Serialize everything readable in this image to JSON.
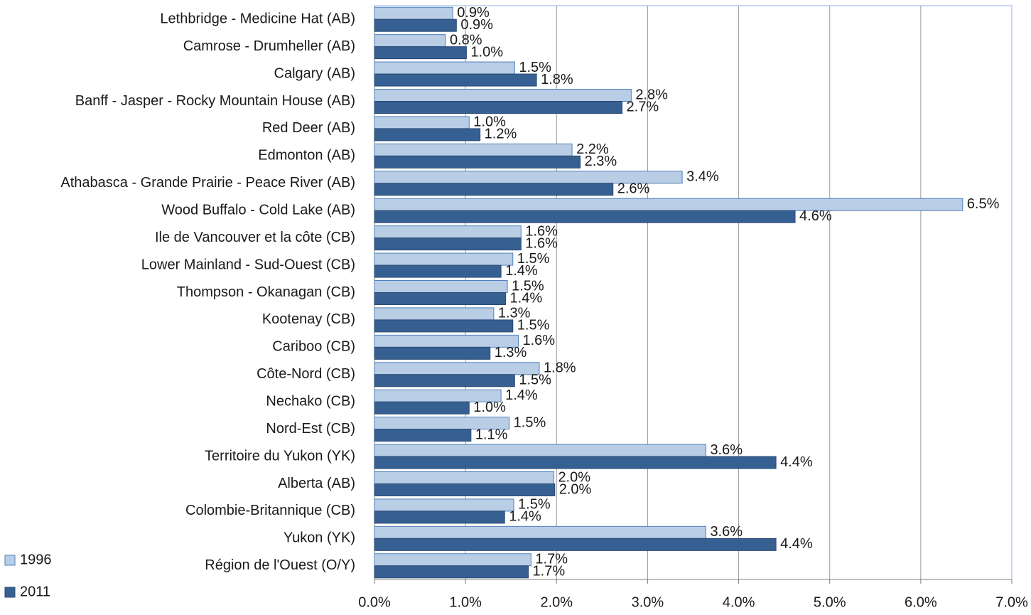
{
  "chart_data": {
    "type": "bar",
    "orientation": "horizontal",
    "categories": [
      "Lethbridge - Medicine Hat (AB)",
      "Camrose - Drumheller (AB)",
      "Calgary (AB)",
      "Banff - Jasper - Rocky Mountain House (AB)",
      "Red Deer (AB)",
      "Edmonton (AB)",
      "Athabasca - Grande Prairie - Peace River (AB)",
      "Wood Buffalo - Cold Lake (AB)",
      "Ile de Vancouver et la côte (CB)",
      "Lower Mainland - Sud-Ouest (CB)",
      "Thompson - Okanagan (CB)",
      "Kootenay (CB)",
      "Cariboo (CB)",
      "Côte-Nord (CB)",
      "Nechako (CB)",
      "Nord-Est (CB)",
      "Territoire du Yukon (YK)",
      "Alberta (AB)",
      "Colombie-Britannique (CB)",
      "Yukon (YK)",
      "Région de l'Ouest (O/Y)"
    ],
    "series": [
      {
        "name": "1996",
        "color": "#b9cde5",
        "edge": "#4f81bd",
        "values": [
          0.86,
          0.78,
          1.54,
          2.82,
          1.04,
          2.17,
          3.38,
          6.46,
          1.61,
          1.52,
          1.46,
          1.31,
          1.58,
          1.81,
          1.39,
          1.48,
          3.64,
          1.97,
          1.53,
          3.64,
          1.72
        ],
        "value_labels": [
          "0.9%",
          "0.8%",
          "1.5%",
          "2.8%",
          "1.0%",
          "2.2%",
          "3.4%",
          "6.5%",
          "1.6%",
          "1.5%",
          "1.5%",
          "1.3%",
          "1.6%",
          "1.8%",
          "1.4%",
          "1.5%",
          "3.6%",
          "2.0%",
          "1.5%",
          "3.6%",
          "1.7%"
        ]
      },
      {
        "name": "2011",
        "color": "#376092",
        "edge": "#2a4a73",
        "values": [
          0.9,
          1.01,
          1.78,
          2.72,
          1.16,
          2.26,
          2.62,
          4.62,
          1.61,
          1.39,
          1.44,
          1.52,
          1.27,
          1.54,
          1.04,
          1.06,
          4.41,
          1.98,
          1.43,
          4.41,
          1.69
        ],
        "value_labels": [
          "0.9%",
          "1.0%",
          "1.8%",
          "2.7%",
          "1.2%",
          "2.3%",
          "2.6%",
          "4.6%",
          "1.6%",
          "1.4%",
          "1.4%",
          "1.5%",
          "1.3%",
          "1.5%",
          "1.0%",
          "1.1%",
          "4.4%",
          "2.0%",
          "1.4%",
          "4.4%",
          "1.7%"
        ]
      }
    ],
    "xlim": [
      0,
      7
    ],
    "xticks": [
      {
        "value": 0,
        "label": "0.0%"
      },
      {
        "value": 1,
        "label": "1.0%"
      },
      {
        "value": 2,
        "label": "2.0%"
      },
      {
        "value": 3,
        "label": "3.0%"
      },
      {
        "value": 4,
        "label": "4.0%"
      },
      {
        "value": 5,
        "label": "5.0%"
      },
      {
        "value": 6,
        "label": "6.0%"
      },
      {
        "value": 7,
        "label": "7.0%"
      }
    ],
    "grid": true,
    "legend": "bottom-left"
  }
}
